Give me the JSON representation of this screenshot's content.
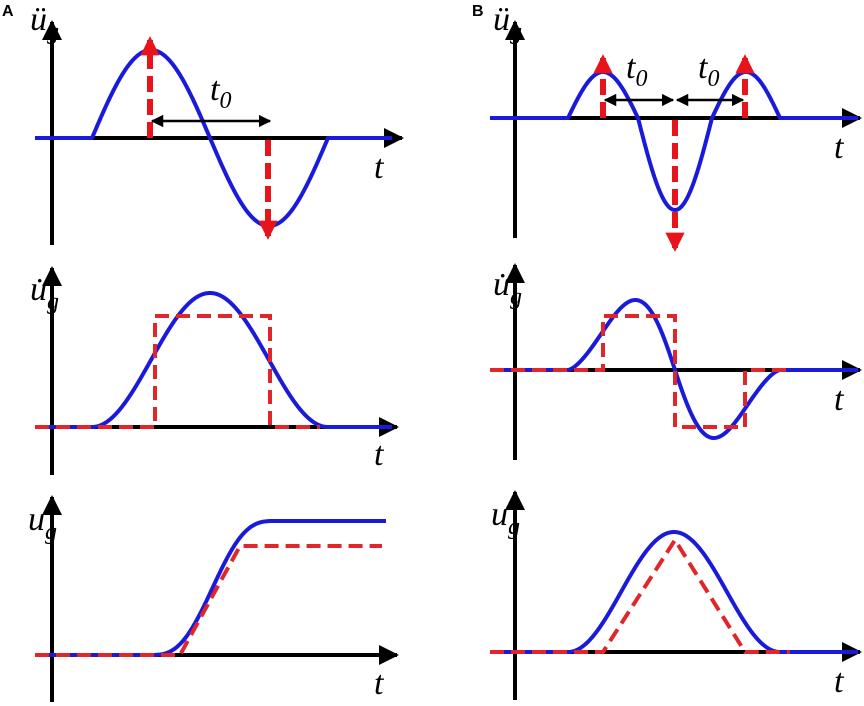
{
  "panels": [
    {
      "label": "A",
      "plots": [
        {
          "y_label": "ü",
          "y_sub": "g",
          "x_label": "t"
        },
        {
          "y_label": "u̇",
          "y_sub": "g",
          "x_label": "t"
        },
        {
          "y_label": "u",
          "y_sub": "g",
          "x_label": "t"
        }
      ],
      "annotations": [
        {
          "text": "t",
          "sub": "0"
        }
      ]
    },
    {
      "label": "B",
      "plots": [
        {
          "y_label": "ü",
          "y_sub": "g",
          "x_label": "t"
        },
        {
          "y_label": "u̇",
          "y_sub": "g",
          "x_label": "t"
        },
        {
          "y_label": "u",
          "y_sub": "g",
          "x_label": "t"
        }
      ],
      "annotations": [
        {
          "text": "t",
          "sub": "0"
        },
        {
          "text": "t",
          "sub": "0"
        }
      ]
    }
  ]
}
